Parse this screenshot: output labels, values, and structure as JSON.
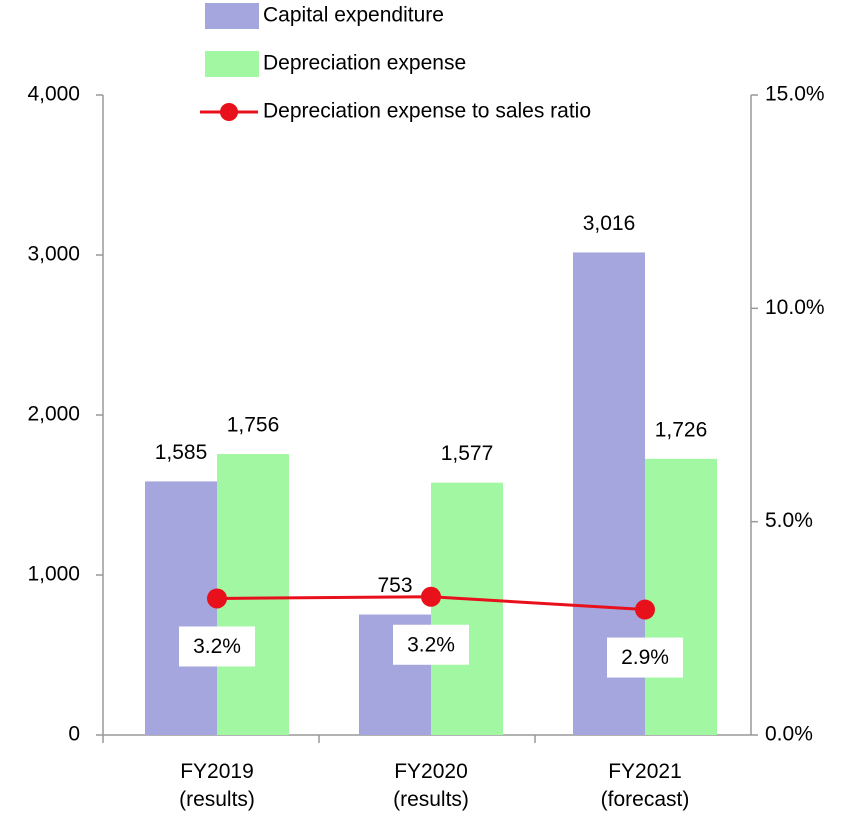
{
  "chart_data": {
    "type": "bar",
    "categories": [
      "FY2019\n(results)",
      "FY2020\n(results)",
      "FY2021\n(forecast)"
    ],
    "series": [
      {
        "name": "Capital expenditure",
        "color": "#a6a6df",
        "values": [
          1585,
          753,
          3016
        ],
        "value_labels": [
          "1,585",
          "753",
          "3,016"
        ]
      },
      {
        "name": "Depreciation expense",
        "color": "#a2f7a2",
        "values": [
          1756,
          1577,
          1726
        ],
        "value_labels": [
          "1,756",
          "1,577",
          "1,726"
        ]
      },
      {
        "name": "Depreciation expense to sales ratio",
        "color": "#e8101a",
        "type": "line",
        "axis": "y2",
        "values": [
          3.2,
          3.24,
          2.94
        ],
        "value_labels": [
          "3.2%",
          "3.2%",
          "2.9%"
        ]
      }
    ],
    "ylim": [
      0,
      4000
    ],
    "yticks": [
      0,
      {
        "value": 1000,
        "label": "1,000"
      },
      {
        "value": 2000,
        "label": "2,000"
      },
      {
        "value": 3000,
        "label": "3,000"
      },
      {
        "value": 4000,
        "label": "4,000"
      }
    ],
    "y2lim": [
      0,
      15
    ],
    "y2ticks": [
      {
        "value": 0,
        "label": "0.0%"
      },
      {
        "value": 5,
        "label": "5.0%"
      },
      {
        "value": 10,
        "label": "10.0%"
      },
      {
        "value": 15,
        "label": "15.0%"
      }
    ],
    "legend": "top"
  }
}
